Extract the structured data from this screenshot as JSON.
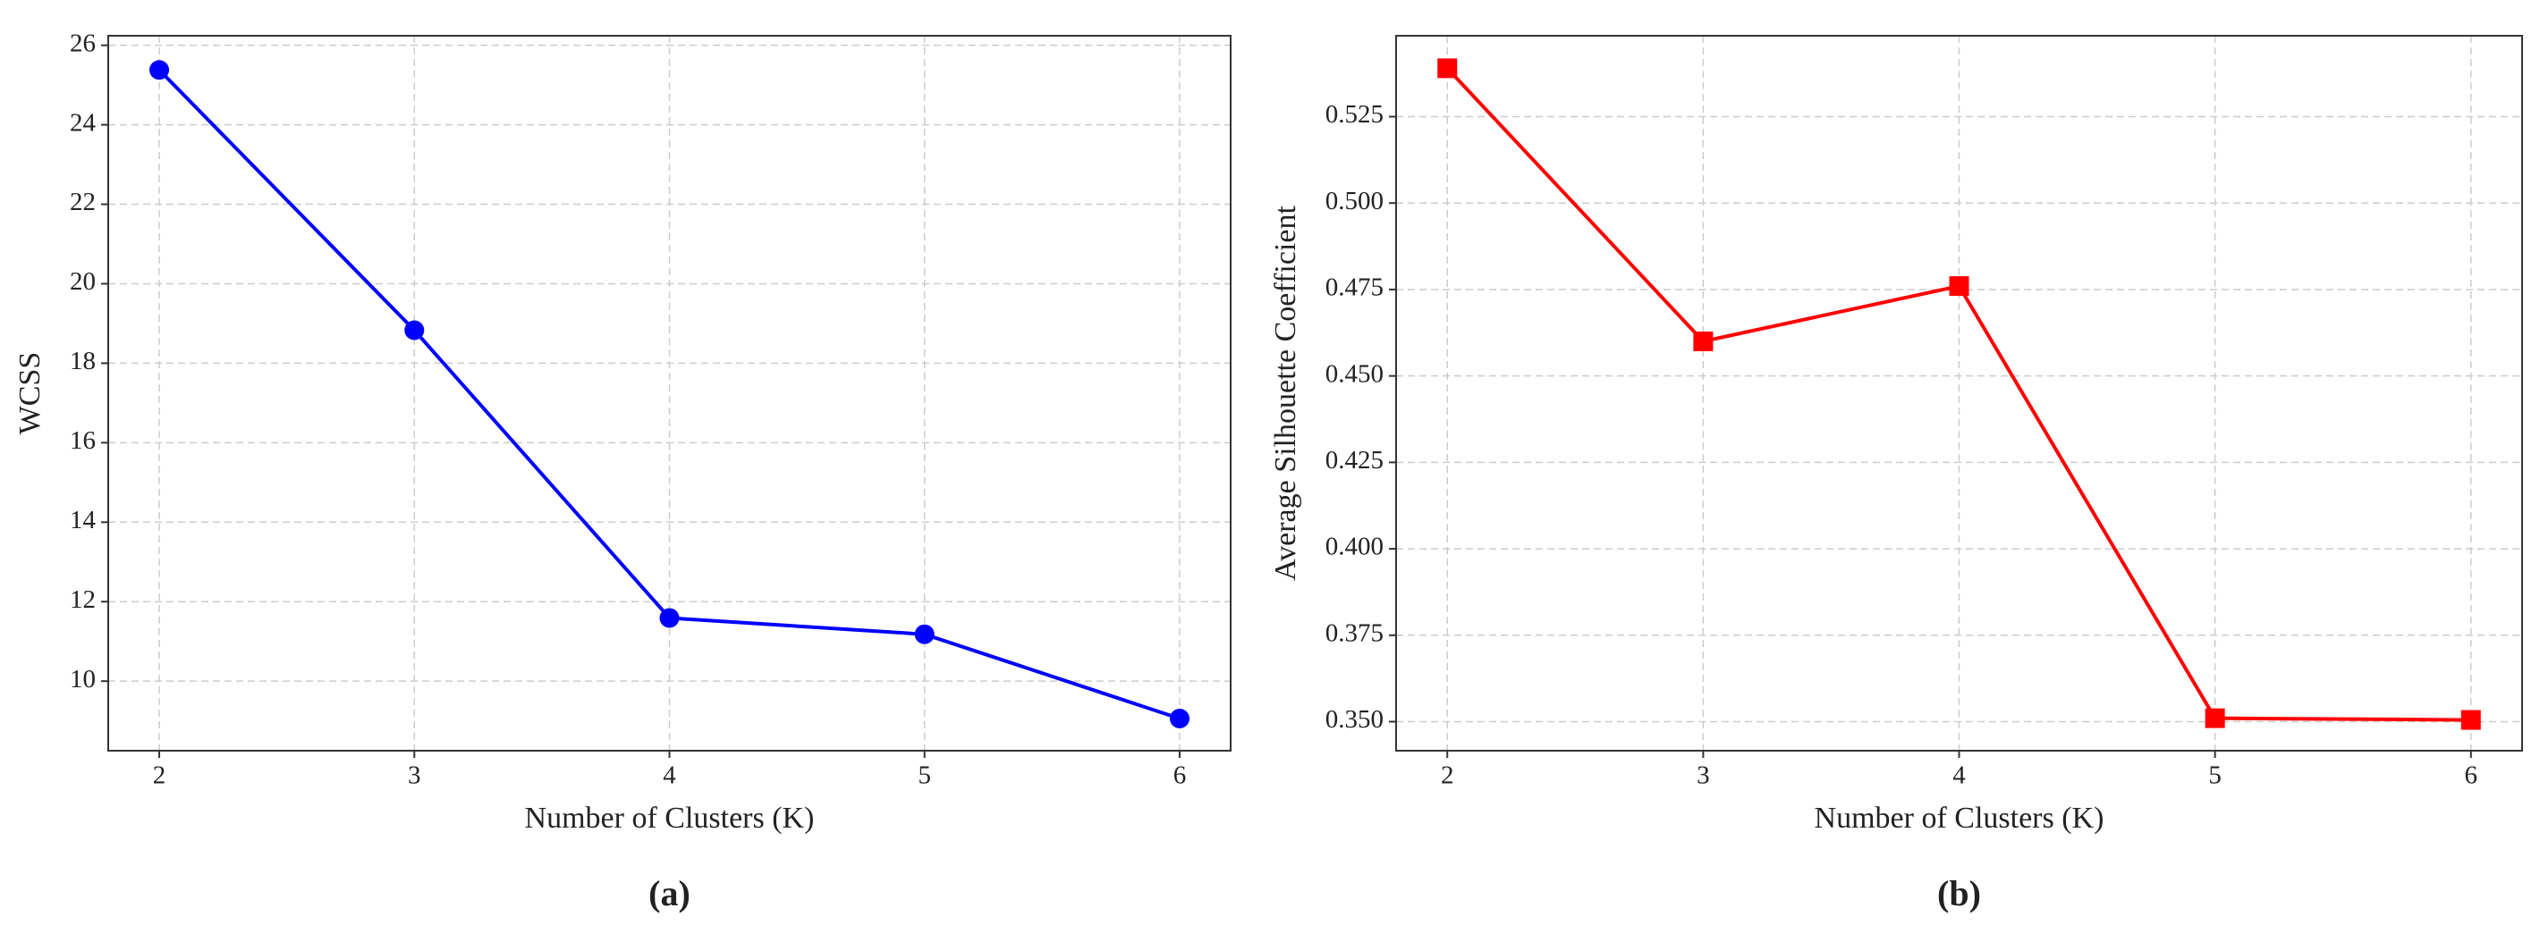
{
  "chart_data": [
    {
      "type": "line",
      "caption": "(a)",
      "xlabel": "Number of Clusters (K)",
      "ylabel": "WCSS",
      "x": [
        2,
        3,
        4,
        5,
        6
      ],
      "series": [
        {
          "name": "WCSS",
          "color": "#0000ff",
          "marker": "circle",
          "values": [
            25.38,
            18.83,
            11.59,
            11.18,
            9.06
          ]
        }
      ],
      "xlim": [
        1.8,
        6.2
      ],
      "xticks": [
        2,
        3,
        4,
        5,
        6
      ],
      "ylim": [
        8.25,
        26.24
      ],
      "yticks": [
        10,
        12,
        14,
        16,
        18,
        20,
        22,
        24,
        26
      ],
      "grid": true
    },
    {
      "type": "line",
      "caption": "(b)",
      "xlabel": "Number of Clusters (K)",
      "ylabel": "Average Silhouette Coefficient",
      "x": [
        2,
        3,
        4,
        5,
        6
      ],
      "series": [
        {
          "name": "Average Silhouette Coefficient",
          "color": "#ff0000",
          "marker": "square",
          "values": [
            0.539,
            0.46,
            0.476,
            0.351,
            0.3505
          ]
        }
      ],
      "xlim": [
        1.8,
        6.2
      ],
      "xticks": [
        2,
        3,
        4,
        5,
        6
      ],
      "ylim": [
        0.3416,
        0.5484
      ],
      "yticks": [
        {
          "value": 0.35,
          "label": "0.350"
        },
        {
          "value": 0.375,
          "label": "0.375"
        },
        {
          "value": 0.4,
          "label": "0.400"
        },
        {
          "value": 0.425,
          "label": "0.425"
        },
        {
          "value": 0.45,
          "label": "0.450"
        },
        {
          "value": 0.475,
          "label": "0.475"
        },
        {
          "value": 0.5,
          "label": "0.500"
        },
        {
          "value": 0.525,
          "label": "0.525"
        }
      ],
      "grid": true
    }
  ]
}
